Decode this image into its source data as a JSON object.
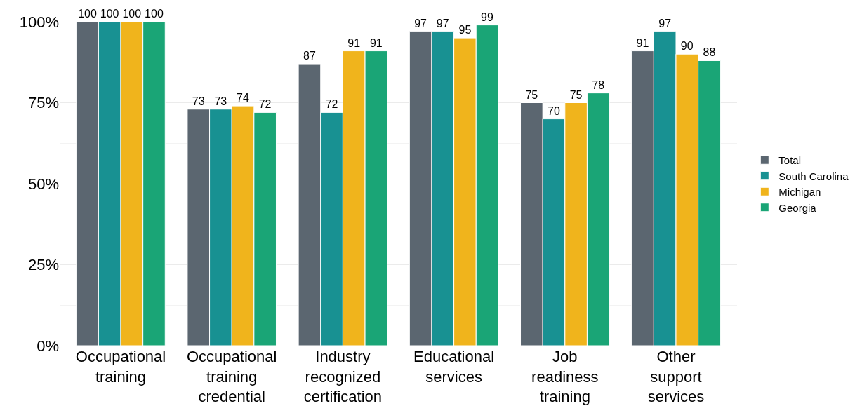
{
  "chart_data": {
    "type": "bar",
    "categories": [
      "Occupational training",
      "Occupational training credential",
      "Industry recognized certification",
      "Educational services",
      "Job readiness training",
      "Other support services"
    ],
    "series": [
      {
        "name": "Total",
        "color": "#5b6670",
        "values": [
          100,
          73,
          87,
          97,
          75,
          91
        ]
      },
      {
        "name": "South Carolina",
        "color": "#189192",
        "values": [
          100,
          73,
          72,
          97,
          70,
          97
        ]
      },
      {
        "name": "Michigan",
        "color": "#f0b41c",
        "values": [
          100,
          74,
          91,
          95,
          75,
          90
        ]
      },
      {
        "name": "Georgia",
        "color": "#1aa576",
        "values": [
          100,
          72,
          91,
          99,
          78,
          88
        ]
      }
    ],
    "ylim": [
      0,
      100
    ],
    "yticks": [
      {
        "value": 0,
        "label": "0%"
      },
      {
        "value": 25,
        "label": "25%"
      },
      {
        "value": 50,
        "label": "50%"
      },
      {
        "value": 75,
        "label": "75%"
      },
      {
        "value": 100,
        "label": "100%"
      }
    ],
    "data_labels": true,
    "grid": "y",
    "legend": "right"
  }
}
